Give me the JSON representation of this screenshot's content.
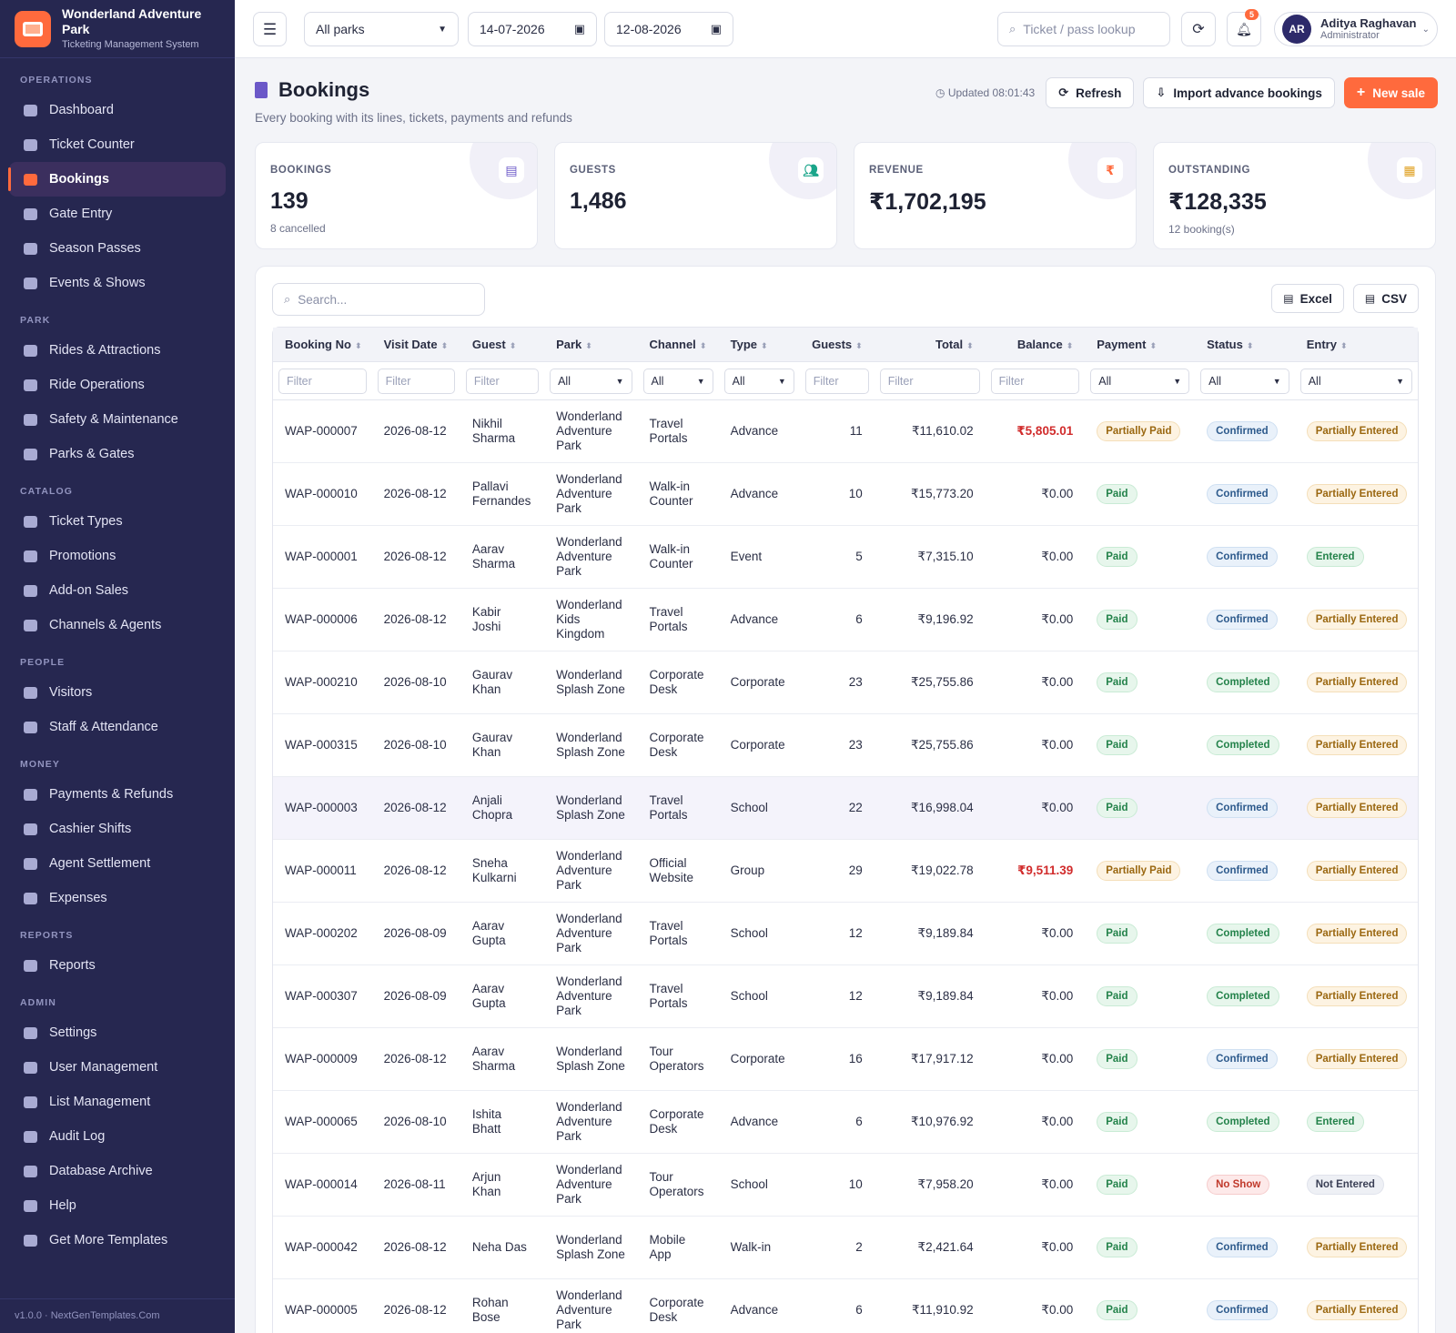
{
  "brand": {
    "name": "Wonderland Adventure Park",
    "subtitle": "Ticketing Management System"
  },
  "sidebar": {
    "sections": [
      {
        "title": "OPERATIONS",
        "items": [
          {
            "label": "Dashboard",
            "icon": "dashboard-icon"
          },
          {
            "label": "Ticket Counter",
            "icon": "ticket-icon"
          },
          {
            "label": "Bookings",
            "icon": "bookings-icon",
            "active": true
          },
          {
            "label": "Gate Entry",
            "icon": "gate-icon"
          },
          {
            "label": "Season Passes",
            "icon": "pass-icon"
          },
          {
            "label": "Events & Shows",
            "icon": "masks-icon"
          }
        ]
      },
      {
        "title": "PARK",
        "items": [
          {
            "label": "Rides & Attractions",
            "icon": "rocket-icon"
          },
          {
            "label": "Ride Operations",
            "icon": "gears-icon"
          },
          {
            "label": "Safety & Maintenance",
            "icon": "shield-icon"
          },
          {
            "label": "Parks & Gates",
            "icon": "map-icon"
          }
        ]
      },
      {
        "title": "CATALOG",
        "items": [
          {
            "label": "Ticket Types",
            "icon": "ticket-types-icon"
          },
          {
            "label": "Promotions",
            "icon": "tags-icon"
          },
          {
            "label": "Add-on Sales",
            "icon": "basket-icon"
          },
          {
            "label": "Channels & Agents",
            "icon": "broadcast-icon"
          }
        ]
      },
      {
        "title": "PEOPLE",
        "items": [
          {
            "label": "Visitors",
            "icon": "users-icon"
          },
          {
            "label": "Staff & Attendance",
            "icon": "staff-icon"
          }
        ]
      },
      {
        "title": "MONEY",
        "items": [
          {
            "label": "Payments & Refunds",
            "icon": "card-icon"
          },
          {
            "label": "Cashier Shifts",
            "icon": "cash-icon"
          },
          {
            "label": "Agent Settlement",
            "icon": "handshake-icon"
          },
          {
            "label": "Expenses",
            "icon": "wallet-icon"
          }
        ]
      },
      {
        "title": "REPORTS",
        "items": [
          {
            "label": "Reports",
            "icon": "chart-icon"
          }
        ]
      },
      {
        "title": "ADMIN",
        "items": [
          {
            "label": "Settings",
            "icon": "gear-icon"
          },
          {
            "label": "User Management",
            "icon": "user-gear-icon"
          },
          {
            "label": "List Management",
            "icon": "list-icon"
          },
          {
            "label": "Audit Log",
            "icon": "clipboard-icon"
          },
          {
            "label": "Database Archive",
            "icon": "archive-icon"
          },
          {
            "label": "Help",
            "icon": "help-icon"
          },
          {
            "label": "Get More Templates",
            "icon": "star-icon"
          }
        ]
      }
    ],
    "footer": "v1.0.0 · NextGenTemplates.Com"
  },
  "topbar": {
    "park_select": "All parks",
    "date_from": "14-07-2026",
    "date_to": "12-08-2026",
    "lookup_placeholder": "Ticket / pass lookup",
    "notifications": "5",
    "user": {
      "initials": "AR",
      "name": "Aditya Raghavan",
      "role": "Administrator"
    }
  },
  "page": {
    "title": "Bookings",
    "subtitle": "Every booking with its lines, tickets, payments and refunds",
    "updated": "Updated 08:01:43",
    "refresh_label": "Refresh",
    "import_label": "Import advance bookings",
    "new_sale_label": "New sale"
  },
  "stats": [
    {
      "label": "BOOKINGS",
      "value": "139",
      "note": "8 cancelled",
      "icon": "bookings-icon",
      "color": "#6b58c8"
    },
    {
      "label": "GUESTS",
      "value": "1,486",
      "note": "",
      "icon": "users-icon",
      "color": "#1aa58a"
    },
    {
      "label": "REVENUE",
      "value": "₹1,702,195",
      "note": "",
      "icon": "rupee-icon",
      "color": "#ff6a3d"
    },
    {
      "label": "OUTSTANDING",
      "value": "₹128,335",
      "note": "12 booking(s)",
      "icon": "invoice-icon",
      "color": "#e0a020"
    }
  ],
  "table": {
    "search_placeholder": "Search...",
    "excel_label": "Excel",
    "csv_label": "CSV",
    "columns": [
      "Booking No",
      "Visit Date",
      "Guest",
      "Park",
      "Channel",
      "Type",
      "Guests",
      "Total",
      "Balance",
      "Payment",
      "Status",
      "Entry"
    ],
    "filter_placeholder": "Filter",
    "filter_select": "All",
    "rows": [
      {
        "no": "WAP-000007",
        "date": "2026-08-12",
        "guest": "Nikhil Sharma",
        "park": "Wonderland Adventure Park",
        "channel": "Travel Portals",
        "type": "Advance",
        "guests": "11",
        "total": "₹11,610.02",
        "balance": "₹5,805.01",
        "payment": "Partially Paid",
        "status": "Confirmed",
        "entry": "Partially Entered"
      },
      {
        "no": "WAP-000010",
        "date": "2026-08-12",
        "guest": "Pallavi Fernandes",
        "park": "Wonderland Adventure Park",
        "channel": "Walk-in Counter",
        "type": "Advance",
        "guests": "10",
        "total": "₹15,773.20",
        "balance": "₹0.00",
        "payment": "Paid",
        "status": "Confirmed",
        "entry": "Partially Entered"
      },
      {
        "no": "WAP-000001",
        "date": "2026-08-12",
        "guest": "Aarav Sharma",
        "park": "Wonderland Adventure Park",
        "channel": "Walk-in Counter",
        "type": "Event",
        "guests": "5",
        "total": "₹7,315.10",
        "balance": "₹0.00",
        "payment": "Paid",
        "status": "Confirmed",
        "entry": "Entered"
      },
      {
        "no": "WAP-000006",
        "date": "2026-08-12",
        "guest": "Kabir Joshi",
        "park": "Wonderland Kids Kingdom",
        "channel": "Travel Portals",
        "type": "Advance",
        "guests": "6",
        "total": "₹9,196.92",
        "balance": "₹0.00",
        "payment": "Paid",
        "status": "Confirmed",
        "entry": "Partially Entered"
      },
      {
        "no": "WAP-000210",
        "date": "2026-08-10",
        "guest": "Gaurav Khan",
        "park": "Wonderland Splash Zone",
        "channel": "Corporate Desk",
        "type": "Corporate",
        "guests": "23",
        "total": "₹25,755.86",
        "balance": "₹0.00",
        "payment": "Paid",
        "status": "Completed",
        "entry": "Partially Entered"
      },
      {
        "no": "WAP-000315",
        "date": "2026-08-10",
        "guest": "Gaurav Khan",
        "park": "Wonderland Splash Zone",
        "channel": "Corporate Desk",
        "type": "Corporate",
        "guests": "23",
        "total": "₹25,755.86",
        "balance": "₹0.00",
        "payment": "Paid",
        "status": "Completed",
        "entry": "Partially Entered"
      },
      {
        "no": "WAP-000003",
        "date": "2026-08-12",
        "guest": "Anjali Chopra",
        "park": "Wonderland Splash Zone",
        "channel": "Travel Portals",
        "type": "School",
        "guests": "22",
        "total": "₹16,998.04",
        "balance": "₹0.00",
        "payment": "Paid",
        "status": "Confirmed",
        "entry": "Partially Entered"
      },
      {
        "no": "WAP-000011",
        "date": "2026-08-12",
        "guest": "Sneha Kulkarni",
        "park": "Wonderland Adventure Park",
        "channel": "Official Website",
        "type": "Group",
        "guests": "29",
        "total": "₹19,022.78",
        "balance": "₹9,511.39",
        "payment": "Partially Paid",
        "status": "Confirmed",
        "entry": "Partially Entered"
      },
      {
        "no": "WAP-000202",
        "date": "2026-08-09",
        "guest": "Aarav Gupta",
        "park": "Wonderland Adventure Park",
        "channel": "Travel Portals",
        "type": "School",
        "guests": "12",
        "total": "₹9,189.84",
        "balance": "₹0.00",
        "payment": "Paid",
        "status": "Completed",
        "entry": "Partially Entered"
      },
      {
        "no": "WAP-000307",
        "date": "2026-08-09",
        "guest": "Aarav Gupta",
        "park": "Wonderland Adventure Park",
        "channel": "Travel Portals",
        "type": "School",
        "guests": "12",
        "total": "₹9,189.84",
        "balance": "₹0.00",
        "payment": "Paid",
        "status": "Completed",
        "entry": "Partially Entered"
      },
      {
        "no": "WAP-000009",
        "date": "2026-08-12",
        "guest": "Aarav Sharma",
        "park": "Wonderland Splash Zone",
        "channel": "Tour Operators",
        "type": "Corporate",
        "guests": "16",
        "total": "₹17,917.12",
        "balance": "₹0.00",
        "payment": "Paid",
        "status": "Confirmed",
        "entry": "Partially Entered"
      },
      {
        "no": "WAP-000065",
        "date": "2026-08-10",
        "guest": "Ishita Bhatt",
        "park": "Wonderland Adventure Park",
        "channel": "Corporate Desk",
        "type": "Advance",
        "guests": "6",
        "total": "₹10,976.92",
        "balance": "₹0.00",
        "payment": "Paid",
        "status": "Completed",
        "entry": "Entered"
      },
      {
        "no": "WAP-000014",
        "date": "2026-08-11",
        "guest": "Arjun Khan",
        "park": "Wonderland Adventure Park",
        "channel": "Tour Operators",
        "type": "School",
        "guests": "10",
        "total": "₹7,958.20",
        "balance": "₹0.00",
        "payment": "Paid",
        "status": "No Show",
        "entry": "Not Entered"
      },
      {
        "no": "WAP-000042",
        "date": "2026-08-12",
        "guest": "Neha Das",
        "park": "Wonderland Splash Zone",
        "channel": "Mobile App",
        "type": "Walk-in",
        "guests": "2",
        "total": "₹2,421.64",
        "balance": "₹0.00",
        "payment": "Paid",
        "status": "Confirmed",
        "entry": "Partially Entered"
      },
      {
        "no": "WAP-000005",
        "date": "2026-08-12",
        "guest": "Rohan Bose",
        "park": "Wonderland Adventure Park",
        "channel": "Corporate Desk",
        "type": "Advance",
        "guests": "6",
        "total": "₹11,910.92",
        "balance": "₹0.00",
        "payment": "Paid",
        "status": "Confirmed",
        "entry": "Partially Entered"
      }
    ]
  }
}
